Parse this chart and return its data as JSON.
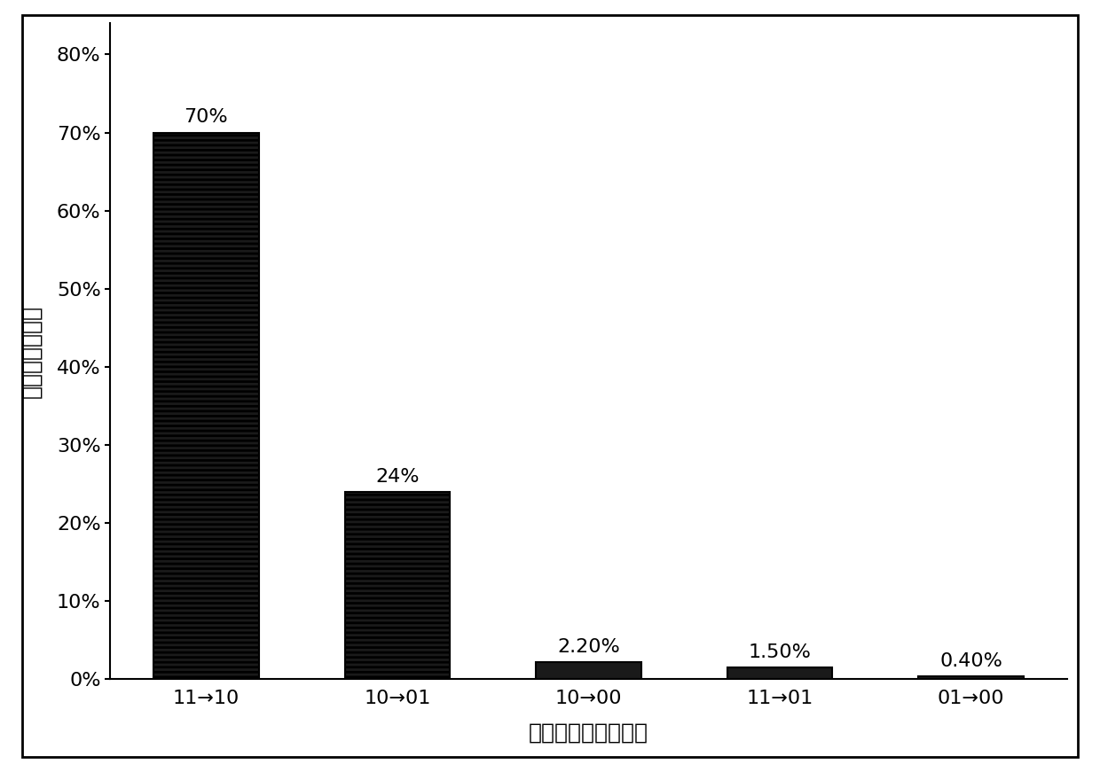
{
  "categories": [
    "11→10",
    "10→01",
    "10→00",
    "11→01",
    "01→00"
  ],
  "values": [
    0.7,
    0.24,
    0.022,
    0.015,
    0.004
  ],
  "labels": [
    "70%",
    "24%",
    "2.20%",
    "1.50%",
    "0.40%"
  ],
  "hatch_patterns": [
    "---",
    "---",
    "",
    "",
    ""
  ],
  "hatch_bar_facecolor": "#1a1a1a",
  "solid_bar_facecolor": "#1a1a1a",
  "ylabel": "错误转化百分比",
  "xlabel": "不同的错误转化方向",
  "ylim": [
    0,
    0.84
  ],
  "yticks": [
    0.0,
    0.1,
    0.2,
    0.3,
    0.4,
    0.5,
    0.6,
    0.7,
    0.8
  ],
  "ytick_labels": [
    "0%",
    "10%",
    "20%",
    "30%",
    "40%",
    "50%",
    "60%",
    "70%",
    "80%"
  ],
  "background_color": "#ffffff",
  "label_fontsize": 18,
  "tick_fontsize": 16,
  "annotation_fontsize": 16,
  "bar_width": 0.55,
  "border_linewidth": 2.0
}
